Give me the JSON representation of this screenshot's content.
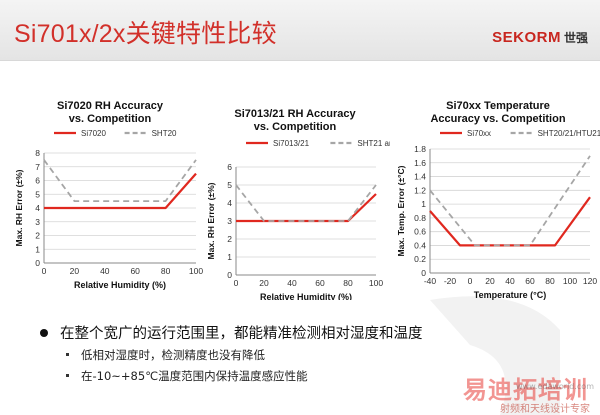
{
  "header": {
    "title": "Si701x/2x关键特性比较",
    "logo_en": "SEKORM",
    "logo_cn": "世强"
  },
  "colors": {
    "accent": "#d2302a",
    "si_series": "#e0281f",
    "competitor_series": "#a6a6a6"
  },
  "chart_data": [
    {
      "type": "line",
      "title": "Si7020 RH Accuracy\nvs. Competition",
      "xlabel": "Relative Humidity  (%)",
      "ylabel": "Max. RH Error (±%)",
      "xlim": [
        0,
        100
      ],
      "ylim": [
        0,
        8
      ],
      "xticks": [
        0,
        20,
        40,
        60,
        80,
        100
      ],
      "yticks": [
        0,
        1,
        2,
        3,
        4,
        5,
        6,
        7,
        8
      ],
      "grid": "horizontal",
      "legend": "top",
      "series": [
        {
          "name": "Si7020",
          "style": "solid",
          "x": [
            0,
            80,
            100
          ],
          "y": [
            4,
            4,
            6.5
          ]
        },
        {
          "name": "SHT20",
          "style": "dashed",
          "x": [
            0,
            20,
            80,
            100
          ],
          "y": [
            7.5,
            4.5,
            4.5,
            7.5
          ]
        }
      ]
    },
    {
      "type": "line",
      "title": "Si7013/21 RH Accuracy\nvs. Competition",
      "xlabel": "Relative Humidity (%)",
      "ylabel": "Max. RH Error (±%)",
      "xlim": [
        0,
        100
      ],
      "ylim": [
        0,
        6
      ],
      "xticks": [
        0,
        20,
        40,
        60,
        80,
        100
      ],
      "yticks": [
        0,
        1,
        2,
        3,
        4,
        5,
        6
      ],
      "grid": "horizontal",
      "legend": "top",
      "series": [
        {
          "name": "Si7013/21",
          "style": "solid",
          "x": [
            0,
            80,
            100
          ],
          "y": [
            3,
            3,
            4.5
          ]
        },
        {
          "name": "SHT21 and HTU21D",
          "style": "dashed",
          "x": [
            0,
            20,
            80,
            100
          ],
          "y": [
            5,
            3,
            3,
            5
          ]
        }
      ]
    },
    {
      "type": "line",
      "title": "Si70xx Temperature\nAccuracy vs. Competition",
      "xlabel": "Temperature (°C)",
      "ylabel": "Max. Temp. Error (±°C)",
      "xlim": [
        -40,
        120
      ],
      "ylim": [
        0,
        1.8
      ],
      "xticks": [
        -40,
        -20,
        0,
        20,
        40,
        60,
        80,
        100,
        120
      ],
      "yticks": [
        0,
        0.2,
        0.4,
        0.6,
        0.8,
        1,
        1.2,
        1.4,
        1.6,
        1.8
      ],
      "grid": "horizontal",
      "legend": "top",
      "series": [
        {
          "name": "Si70xx",
          "style": "solid",
          "x": [
            -40,
            -10,
            85,
            120
          ],
          "y": [
            0.9,
            0.4,
            0.4,
            1.1
          ]
        },
        {
          "name": "SHT20/21/HTU21D",
          "style": "dashed",
          "x": [
            -40,
            5,
            60,
            120
          ],
          "y": [
            1.2,
            0.4,
            0.4,
            1.7
          ]
        }
      ]
    }
  ],
  "bullets": {
    "main": "在整个宽广的运行范围里，都能精准检测相对湿度和温度",
    "subs": [
      "低相对湿度时，检测精度也没有降低",
      "在-10~+85℃温度范围内保持温度感应性能"
    ]
  },
  "watermark": {
    "brand": "易迪拓培训",
    "slogan": "射频和天线设计专家",
    "url": "www.edaworld.com"
  }
}
